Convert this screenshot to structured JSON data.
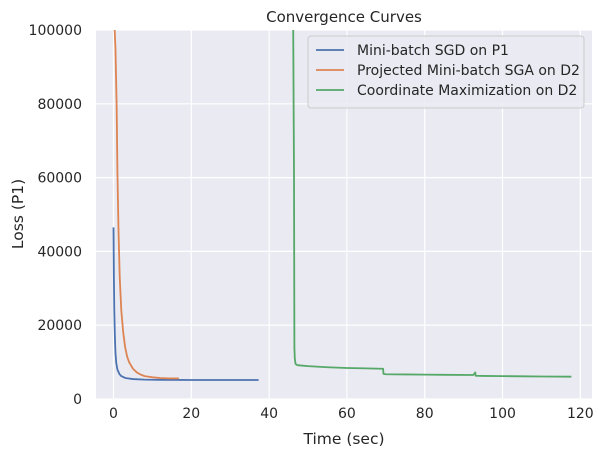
{
  "chart_data": {
    "type": "line",
    "title": "Convergence Curves",
    "xlabel": "Time (sec)",
    "ylabel": "Loss (P1)",
    "xlim": [
      -4.5,
      123
    ],
    "ylim": [
      0,
      100000
    ],
    "xticks": [
      0,
      20,
      40,
      60,
      80,
      100,
      120
    ],
    "yticks": [
      0,
      20000,
      40000,
      60000,
      80000,
      100000
    ],
    "grid": true,
    "legend_position": "top-right",
    "series": [
      {
        "name": "Mini-batch SGD on P1",
        "color": "#4c72b0",
        "x": [
          0,
          0.1,
          0.2,
          0.35,
          0.5,
          0.7,
          1.0,
          1.5,
          2.0,
          3.0,
          5.0,
          8.0,
          12,
          20,
          30,
          37.3
        ],
        "y": [
          46500,
          33000,
          24000,
          17000,
          12500,
          9800,
          8000,
          6800,
          6200,
          5700,
          5400,
          5250,
          5200,
          5150,
          5150,
          5150
        ]
      },
      {
        "name": "Projected Mini-batch SGA on D2",
        "color": "#dd8452",
        "x": [
          0.3,
          0.5,
          0.8,
          1.0,
          1.3,
          1.6,
          2.0,
          2.5,
          3.0,
          3.5,
          4.0,
          5.0,
          6.0,
          7.0,
          8.0,
          10,
          12,
          14,
          16.8
        ],
        "y": [
          100000,
          95000,
          80000,
          62000,
          45000,
          33000,
          24000,
          18000,
          14000,
          11500,
          10000,
          8200,
          7200,
          6600,
          6200,
          5900,
          5700,
          5600,
          5600
        ]
      },
      {
        "name": "Coordinate Maximization on D2",
        "color": "#55a868",
        "x": [
          46.2,
          46.4,
          46.5,
          46.6,
          46.8,
          47.2,
          48,
          50,
          55,
          60,
          65,
          69.3,
          69.4,
          70,
          75,
          80,
          85,
          92.5,
          93,
          93.1,
          95,
          100,
          105,
          110,
          117.7
        ],
        "y": [
          100000,
          60000,
          14000,
          11000,
          9500,
          9200,
          9100,
          8900,
          8600,
          8400,
          8300,
          8200,
          6800,
          6700,
          6650,
          6600,
          6550,
          6500,
          7200,
          6300,
          6250,
          6200,
          6150,
          6100,
          6050
        ]
      }
    ]
  }
}
